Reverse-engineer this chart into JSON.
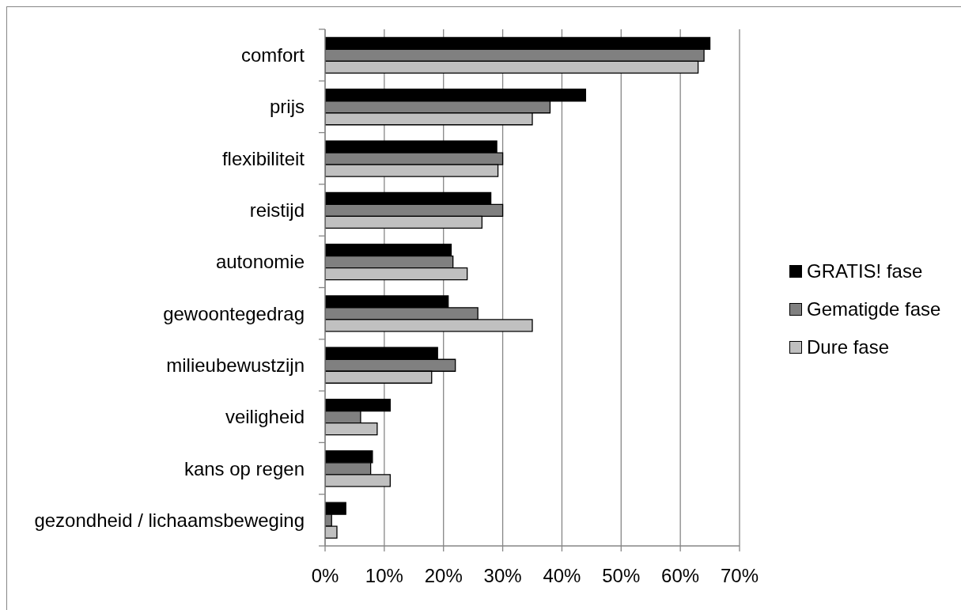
{
  "chart_data": {
    "type": "bar",
    "orientation": "horizontal",
    "categories": [
      "comfort",
      "prijs",
      "flexibiliteit",
      "reistijd",
      "autonomie",
      "gewoontegedrag",
      "milieubewustzijn",
      "veiligheid",
      "kans op regen",
      "gezondheid / lichaamsbeweging"
    ],
    "series": [
      {
        "name": "GRATIS! fase",
        "color": "#000000",
        "values": [
          65,
          44,
          29,
          28,
          21.3,
          20.8,
          19,
          11,
          8,
          3.5
        ]
      },
      {
        "name": "Gematigde fase",
        "color": "#808080",
        "values": [
          64,
          38,
          30,
          30,
          21.6,
          25.8,
          22,
          6,
          7.7,
          1.1
        ]
      },
      {
        "name": "Dure fase",
        "color": "#c0c0c0",
        "values": [
          63,
          35,
          29.2,
          26.5,
          24,
          35,
          18,
          8.8,
          11,
          2
        ]
      }
    ],
    "xlim": [
      0,
      70
    ],
    "xticks": [
      {
        "value": 0,
        "label": "0%"
      },
      {
        "value": 10,
        "label": "10%"
      },
      {
        "value": 20,
        "label": "20%"
      },
      {
        "value": 30,
        "label": "30%"
      },
      {
        "value": 40,
        "label": "40%"
      },
      {
        "value": 50,
        "label": "50%"
      },
      {
        "value": 60,
        "label": "60%"
      },
      {
        "value": 70,
        "label": "70%"
      }
    ],
    "grid": "x",
    "legend": "right"
  }
}
